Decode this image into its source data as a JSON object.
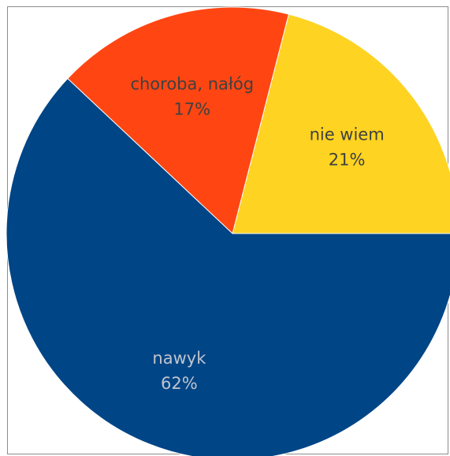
{
  "chart_data": {
    "type": "pie",
    "title": "",
    "start_angle_deg": 0,
    "direction": "counterclockwise",
    "slices": [
      {
        "label": "nie wiem",
        "value": 21,
        "value_label": "21%",
        "color": "#FFD321",
        "text_color": "#404040"
      },
      {
        "label": "choroba, nałóg",
        "value": 17,
        "value_label": "17%",
        "color": "#FF4612",
        "text_color": "#404040"
      },
      {
        "label": "nawyk",
        "value": 62,
        "value_label": "62%",
        "color": "#004586",
        "text_color": "#BFC5CF"
      }
    ]
  }
}
